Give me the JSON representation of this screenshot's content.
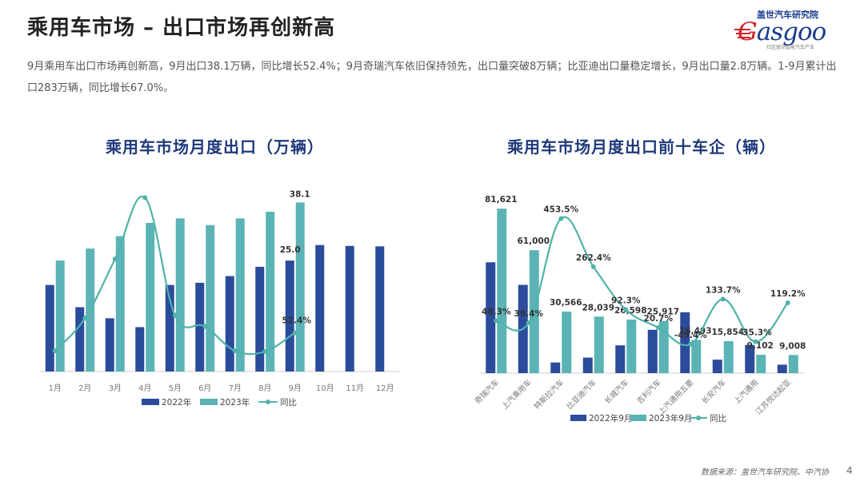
{
  "page": {
    "title": "乘用车市场 – 出口市场再创新高",
    "summary": "9月乘用车出口市场再创新高，9月出口38.1万辆，同比增长52.4%；9月奇瑞汽车依旧保持领先，出口量突破8万辆；比亚迪出口量稳定增长，9月出口量2.8万辆。1-9月累计出口283万辆，同比增长67.0%。",
    "source": "数据来源：盖世汽车研究院、中汽协",
    "page_number": "4"
  },
  "logo": {
    "cn": "盖世汽车研究院",
    "word_g": "G",
    "word_rest": "asgoo",
    "tagline": "社区驱动智能汽车产业"
  },
  "colors": {
    "dark_blue": "#2b4c9b",
    "teal": "#5bb3b5",
    "line": "#4fb3a9",
    "title_blue": "#1f3a7a"
  },
  "chart_data": [
    {
      "type": "bar",
      "title": "乘用车市场月度出口（万辆）",
      "categories": [
        "1月",
        "2月",
        "3月",
        "4月",
        "5月",
        "6月",
        "7月",
        "8月",
        "9月",
        "10月",
        "11月",
        "12月"
      ],
      "series": [
        {
          "name": "2022年",
          "values": [
            19.5,
            14.5,
            12.0,
            10.0,
            19.5,
            20.0,
            21.5,
            23.6,
            25.0,
            28.5,
            28.3,
            28.2
          ]
        },
        {
          "name": "2023年",
          "values": [
            25.0,
            27.7,
            30.5,
            33.5,
            34.5,
            33.0,
            34.5,
            36.0,
            38.1,
            null,
            null,
            null
          ]
        },
        {
          "name": "同比",
          "type": "line",
          "values": [
            28.0,
            72.0,
            152.0,
            235.0,
            76.0,
            61.0,
            28.0,
            27.0,
            52.4,
            null,
            null,
            null
          ]
        }
      ],
      "data_labels": [
        {
          "series": "2023年",
          "index": 8,
          "text": "38.1"
        },
        {
          "series": "2022年",
          "index": 8,
          "text": "25.0"
        },
        {
          "series": "同比",
          "index": 8,
          "text": "52.4%"
        }
      ],
      "ylim": [
        0,
        45
      ],
      "y2lim": [
        0,
        270
      ],
      "legend_position": "bottom"
    },
    {
      "type": "bar",
      "title": "乘用车市场月度出口前十车企（辆）",
      "categories": [
        "奇瑞汽车",
        "上汽乘用车",
        "特斯拉汽车",
        "比亚迪汽车",
        "长城汽车",
        "吉利汽车",
        "上汽通用五菱",
        "长安汽车",
        "上汽通用",
        "江苏悦达起亚"
      ],
      "series": [
        {
          "name": "2022年9月",
          "values": [
            55000,
            43800,
            5300,
            7700,
            13800,
            21500,
            30200,
            6700,
            14000,
            4200
          ]
        },
        {
          "name": "2023年9月",
          "values": [
            81621,
            61000,
            30566,
            28039,
            26598,
            25917,
            16493,
            15854,
            9102,
            9008
          ]
        },
        {
          "name": "同比",
          "type": "line",
          "values": [
            48.3,
            39.4,
            453.5,
            262.4,
            92.3,
            20.7,
            -45.4,
            133.7,
            -35.3,
            119.2
          ]
        }
      ],
      "data_labels": {
        "2023年9月": [
          "81,621",
          "61,000",
          "30,566",
          "28,039",
          "26,598",
          "25,917",
          "16,493",
          "15,854",
          "9,102",
          "9,008"
        ],
        "同比": [
          "48.3%",
          "39.4%",
          "453.5%",
          "262.4%",
          "92.3%",
          "20.7%",
          "-45.4%",
          "133.7%",
          "-35.3%",
          "119.2%"
        ]
      },
      "ylim": [
        0,
        90000
      ],
      "y2lim": [
        -160,
        560
      ],
      "legend_position": "bottom"
    }
  ]
}
